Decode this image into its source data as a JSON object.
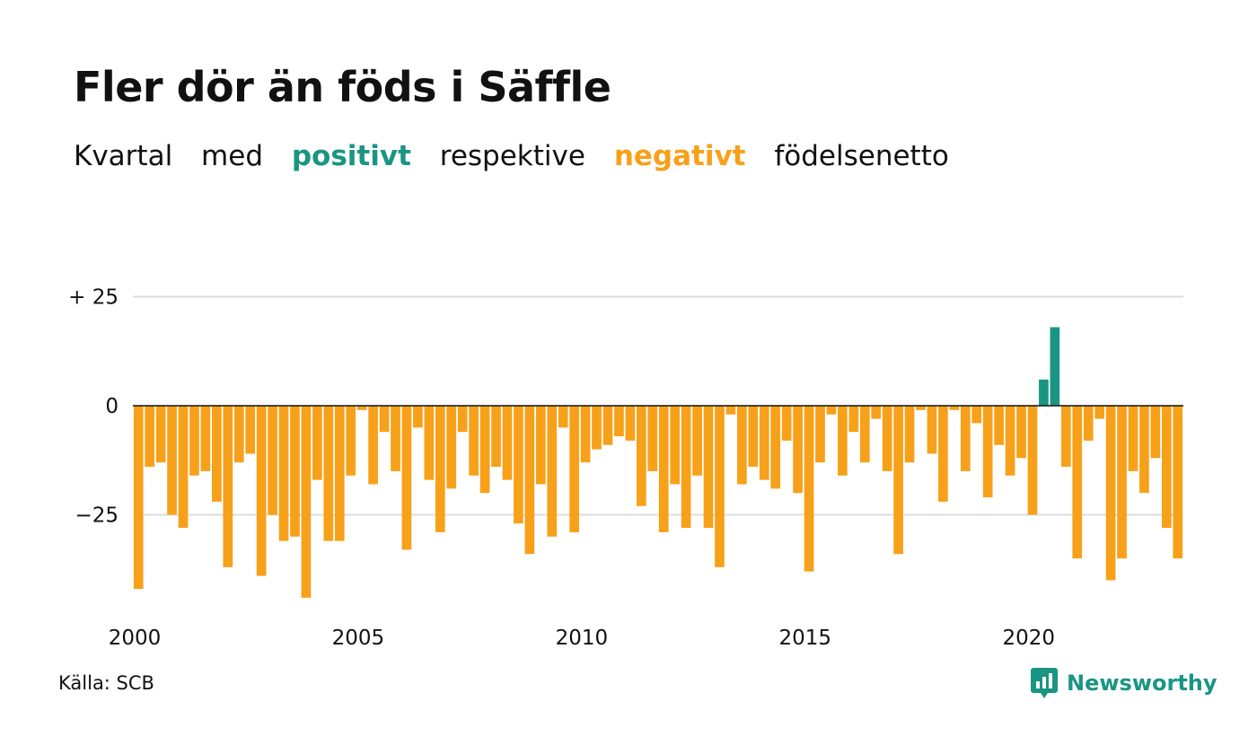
{
  "title": "Fler dör än föds i Säffle",
  "subtitle": {
    "w1": "Kvartal",
    "w2": "med",
    "positive_word": "positivt",
    "w3": "respektive",
    "negative_word": "negativt",
    "w4": "födelsenetto"
  },
  "colors": {
    "positive": "#1a9583",
    "negative": "#f7a11a",
    "grid": "#dddddd",
    "zero_line": "#111111"
  },
  "source": "Källa: SCB",
  "logo": {
    "text": "Newsworthy",
    "icon": "newsworthy-chart-icon"
  },
  "chart_data": {
    "type": "bar",
    "title": "Fler dör än föds i Säffle",
    "xlabel": "",
    "ylabel": "",
    "ylim": [
      -45,
      30
    ],
    "yticks": [
      {
        "value": 25,
        "label": "+ 25"
      },
      {
        "value": 0,
        "label": "0"
      },
      {
        "value": -25,
        "label": "−25"
      }
    ],
    "x_start_year": 2000,
    "xticks": [
      "2000",
      "2005",
      "2010",
      "2015",
      "2020"
    ],
    "grid": true,
    "values": [
      -42,
      -14,
      -13,
      -25,
      -28,
      -16,
      -15,
      -22,
      -37,
      -13,
      -11,
      -39,
      -25,
      -31,
      -30,
      -44,
      -17,
      -31,
      -31,
      -16,
      -1,
      -18,
      -6,
      -15,
      -33,
      -5,
      -17,
      -29,
      -19,
      -6,
      -16,
      -20,
      -14,
      -17,
      -27,
      -34,
      -18,
      -30,
      -5,
      -29,
      -13,
      -10,
      -9,
      -7,
      -8,
      -23,
      -15,
      -29,
      -18,
      -28,
      -16,
      -28,
      -37,
      -2,
      -18,
      -14,
      -17,
      -19,
      -8,
      -20,
      -38,
      -13,
      -2,
      -16,
      -6,
      -13,
      -3,
      -15,
      -34,
      -13,
      -1,
      -11,
      -22,
      -1,
      -15,
      -4,
      -21,
      -9,
      -16,
      -12,
      -25,
      6,
      18,
      -14,
      -35,
      -8,
      -3,
      -40,
      -35,
      -15,
      -20,
      -12,
      -28,
      -35
    ]
  }
}
